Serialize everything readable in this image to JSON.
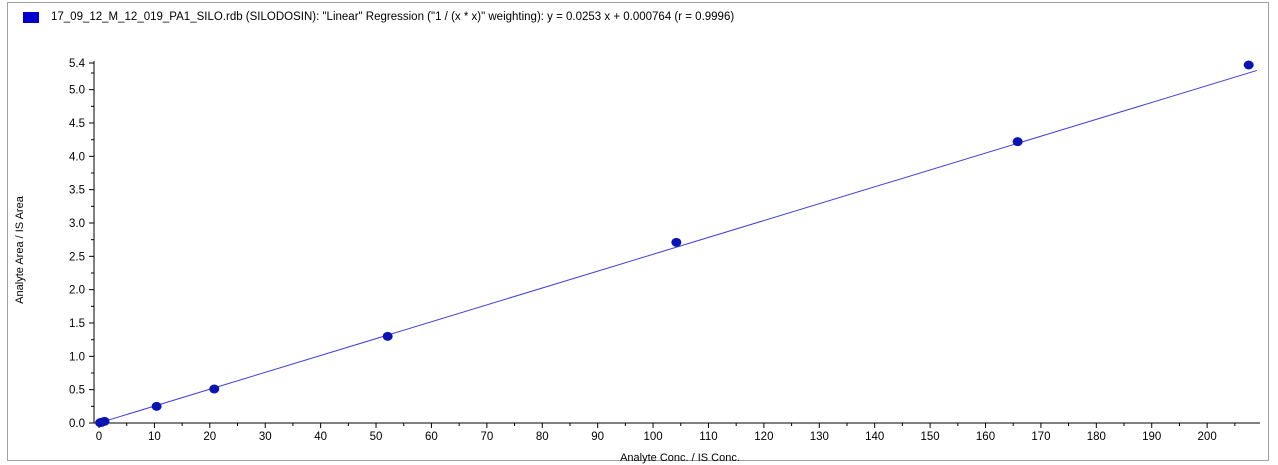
{
  "legend": {
    "text": "17_09_12_M_12_019_PA1_SILO.rdb (SILODOSIN): \"Linear\" Regression (\"1  / (x * x)\" weighting): y = 0.0253 x + 0.000764 (r = 0.9996)",
    "swatch_color": "#0000cc"
  },
  "colors": {
    "points": "#0a14b4",
    "line": "#3c3cdc",
    "axis": "#000000"
  },
  "chart_data": {
    "type": "scatter",
    "title": "17_09_12_M_12_019_PA1_SILO.rdb (SILODOSIN): \"Linear\" Regression (\"1  / (x * x)\" weighting): y = 0.0253 x + 0.000764 (r = 0.9996)",
    "xlabel": "Analyte Conc. / IS Conc.",
    "ylabel": "Analyte Area / IS Area",
    "xlim": [
      0,
      209
    ],
    "ylim": [
      0,
      5.4
    ],
    "x_ticks": [
      0,
      10,
      20,
      30,
      40,
      50,
      60,
      70,
      80,
      90,
      100,
      110,
      120,
      130,
      140,
      150,
      160,
      170,
      180,
      190,
      200
    ],
    "y_ticks": [
      0.0,
      0.5,
      1.0,
      1.5,
      2.0,
      2.5,
      3.0,
      3.5,
      4.0,
      4.5,
      5.0,
      5.4
    ],
    "y_tick_labels": [
      "0.0",
      "0.5",
      "1.0",
      "1.5",
      "2.0",
      "2.5",
      "3.0",
      "3.5",
      "4.0",
      "4.5",
      "5.0",
      "5.4"
    ],
    "points": {
      "x": [
        0.2,
        0.5,
        1.0,
        10.4,
        20.8,
        52.1,
        104.2,
        165.8,
        207.5
      ],
      "y": [
        0.005,
        0.012,
        0.025,
        0.25,
        0.51,
        1.3,
        2.71,
        4.22,
        5.37
      ]
    },
    "regression": {
      "slope": 0.0253,
      "intercept": 0.000764,
      "r": 0.9996,
      "weighting": "1 / (x * x)",
      "x_range": [
        0,
        209
      ]
    },
    "grid": false,
    "legend_position": "top-left"
  }
}
